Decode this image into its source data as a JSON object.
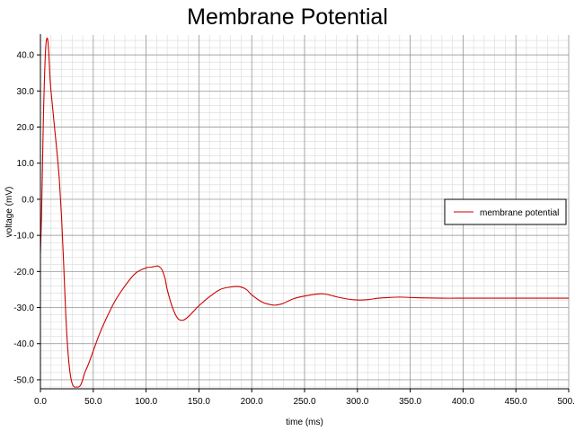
{
  "chart_data": {
    "type": "line",
    "title": "Membrane Potential",
    "xlabel": "time (ms)",
    "ylabel": "voltage (mV)",
    "xlim": [
      0,
      500
    ],
    "ylim": [
      -52.5,
      45.5
    ],
    "grid": true,
    "minor_grid": true,
    "legend_placement": "right",
    "colors": {
      "series": "#cc0000",
      "major_grid": "#8c8c8c",
      "minor_grid": "#d9d9d9",
      "axis": "#000000"
    },
    "x_ticks": [
      0,
      50,
      100,
      150,
      200,
      250,
      300,
      350,
      400,
      450,
      500
    ],
    "x_tick_labels": [
      "0.0",
      "50.0",
      "100.0",
      "150.0",
      "200.0",
      "250.0",
      "300.0",
      "350.0",
      "400.0",
      "450.0",
      "500.0"
    ],
    "y_ticks": [
      -50,
      -40,
      -30,
      -20,
      -10,
      0,
      10,
      20,
      30,
      40
    ],
    "y_tick_labels": [
      "-50.0",
      "-40.0",
      "-30.0",
      "-20.0",
      "-10.0",
      "0.0",
      "10.0",
      "20.0",
      "30.0",
      "40.0"
    ],
    "series": [
      {
        "name": "membrane potential",
        "x": [
          0,
          1,
          2,
          3,
          4,
          5,
          6,
          7,
          8,
          9,
          10,
          12,
          14,
          16,
          18,
          20,
          22,
          24,
          26,
          28,
          30,
          32,
          34,
          36,
          38,
          40,
          42,
          45,
          50,
          55,
          60,
          70,
          80,
          90,
          100,
          105,
          110,
          112,
          115,
          118,
          120,
          125,
          130,
          135,
          140,
          145,
          150,
          160,
          170,
          180,
          188,
          195,
          200,
          210,
          220,
          225,
          230,
          240,
          250,
          260,
          268,
          275,
          280,
          290,
          300,
          310,
          320,
          330,
          340,
          350,
          360,
          380,
          400,
          420,
          450,
          500
        ],
        "y": [
          -15,
          -5,
          10,
          25,
          35,
          42,
          44.5,
          44,
          40,
          34,
          30,
          24,
          18,
          12,
          5,
          -5,
          -18,
          -32,
          -42,
          -48,
          -51,
          -52,
          -52,
          -52,
          -51.5,
          -50,
          -48,
          -46,
          -42,
          -38,
          -34.5,
          -28.5,
          -24,
          -20.5,
          -19,
          -18.8,
          -18.5,
          -18.6,
          -19.5,
          -22,
          -25,
          -30,
          -33,
          -33.5,
          -32.5,
          -31,
          -29.5,
          -27,
          -25,
          -24.3,
          -24.2,
          -25,
          -26.5,
          -28.5,
          -29.3,
          -29.2,
          -28.8,
          -27.5,
          -26.8,
          -26.3,
          -26.2,
          -26.6,
          -27,
          -27.6,
          -27.9,
          -27.8,
          -27.4,
          -27.2,
          -27.1,
          -27.2,
          -27.3,
          -27.4,
          -27.4,
          -27.4,
          -27.4,
          -27.4
        ]
      }
    ]
  }
}
